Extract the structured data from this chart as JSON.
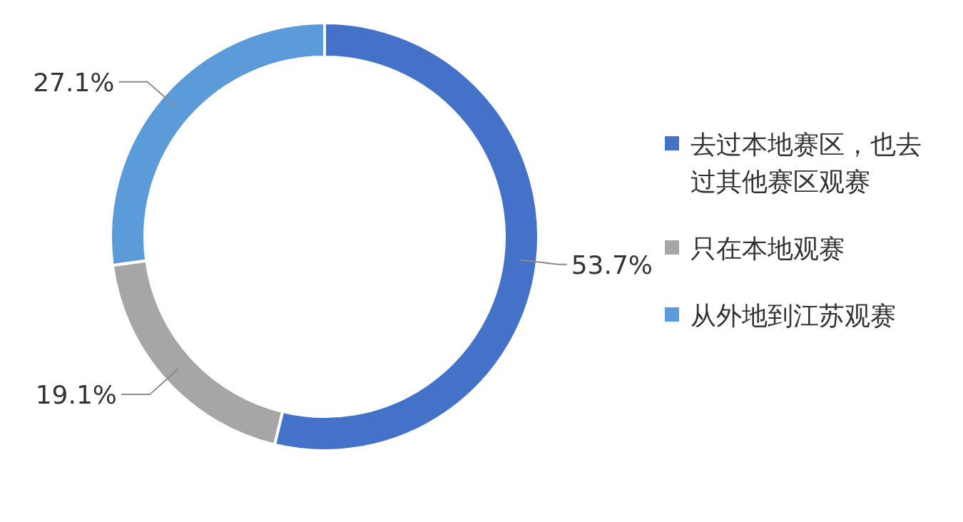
{
  "chart_data": {
    "type": "donut",
    "categories": [
      "去过本地赛区，也去过其他赛区观赛",
      "只在本地观赛",
      "从外地到江苏观赛"
    ],
    "values": [
      53.7,
      19.1,
      27.1
    ],
    "value_labels": [
      "53.7%",
      "19.1%",
      "27.1%"
    ],
    "colors": [
      "#4472c9",
      "#a6a6a6",
      "#5b9bd9"
    ],
    "legend": "right"
  }
}
